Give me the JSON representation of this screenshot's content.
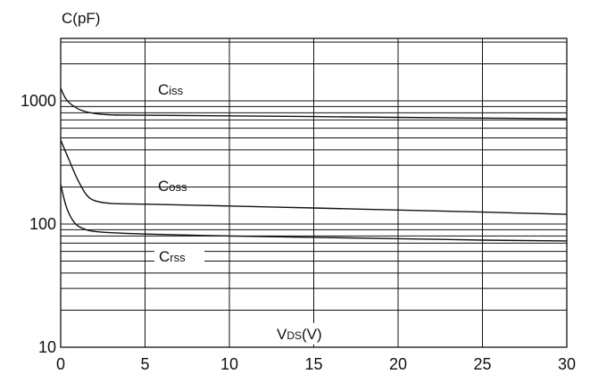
{
  "colors": {
    "background": "#ffffff",
    "ink": "#111111"
  },
  "chart_data": {
    "type": "line",
    "title": "",
    "ylabel": "C(pF)",
    "xlabel_main": "V",
    "xlabel_sub": "DS",
    "xlabel_tail": "(V)",
    "x_scale": "linear",
    "y_scale": "log",
    "xlim": [
      0,
      30
    ],
    "ylim": [
      10,
      4000
    ],
    "grid": true,
    "x_ticks": [
      0,
      5,
      10,
      15,
      20,
      25,
      30
    ],
    "x_tick_labels": [
      "0",
      "5",
      "10",
      "15",
      "20",
      "25",
      "30"
    ],
    "y_ticks": [
      10,
      100,
      1000
    ],
    "y_tick_labels": [
      "10",
      "100",
      "1000"
    ],
    "series": [
      {
        "name": "C",
        "name_sub": "iss",
        "x": [
          0,
          0.3,
          0.7,
          1.2,
          2,
          3,
          5,
          10,
          15,
          20,
          25,
          30
        ],
        "y": [
          1270,
          1040,
          920,
          840,
          790,
          770,
          765,
          755,
          745,
          735,
          725,
          715
        ]
      },
      {
        "name": "C",
        "name_sub": "oss",
        "x": [
          0,
          0.5,
          1,
          1.5,
          2,
          3,
          5,
          10,
          15,
          20,
          25,
          30
        ],
        "y": [
          480,
          330,
          230,
          175,
          155,
          147,
          145,
          140,
          135,
          130,
          125,
          120
        ]
      },
      {
        "name": "C",
        "name_sub": "rss",
        "x": [
          0,
          0.2,
          0.4,
          0.7,
          1,
          1.5,
          2,
          3,
          5,
          10,
          15,
          20,
          25,
          30
        ],
        "y": [
          210,
          160,
          130,
          108,
          97,
          90,
          87,
          85,
          83,
          80,
          78,
          76,
          74,
          73
        ]
      }
    ]
  }
}
